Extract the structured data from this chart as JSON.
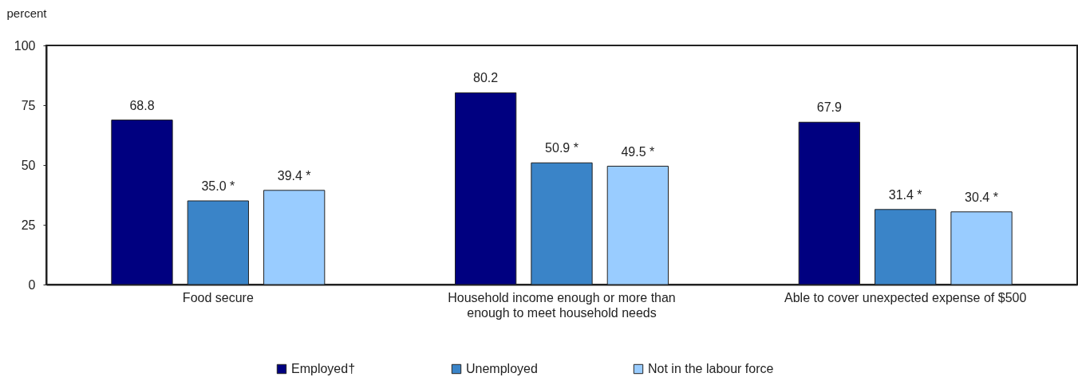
{
  "chart_data": {
    "type": "bar",
    "ylabel": "percent",
    "categories": [
      "Food secure",
      "Household income enough or more than enough to meet household needs",
      "Able to cover unexpected expense of $500"
    ],
    "series": [
      {
        "name": "Employed†",
        "color": "#000080",
        "values": [
          68.8,
          80.2,
          67.9
        ],
        "value_labels": [
          "68.8",
          "80.2",
          "67.9"
        ]
      },
      {
        "name": "Unemployed",
        "color": "#3a84c8",
        "values": [
          35.0,
          50.9,
          31.4
        ],
        "value_labels": [
          "35.0 *",
          "50.9 *",
          "31.4 *"
        ]
      },
      {
        "name": "Not in the labour force",
        "color": "#99ccff",
        "values": [
          39.4,
          49.5,
          30.4
        ],
        "value_labels": [
          "39.4 *",
          "49.5 *",
          "30.4 *"
        ]
      }
    ],
    "ylim": [
      0,
      100
    ],
    "yticks": [
      0,
      25,
      50,
      75,
      100
    ],
    "legend": "bottom"
  }
}
